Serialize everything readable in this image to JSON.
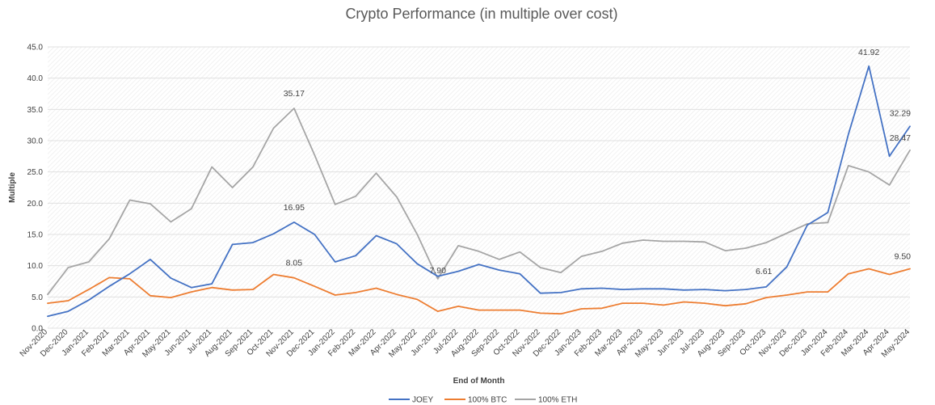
{
  "chart_data": {
    "type": "line",
    "title": "Crypto Performance (in multiple over cost)",
    "xlabel": "End of Month",
    "ylabel": "Multiple",
    "ylim": [
      0,
      45
    ],
    "yticks": [
      "0.0",
      "5.0",
      "10.0",
      "15.0",
      "20.0",
      "25.0",
      "30.0",
      "35.0",
      "40.0",
      "45.0"
    ],
    "grid": true,
    "legend_position": "bottom",
    "categories": [
      "Nov-2020",
      "Dec-2020",
      "Jan-2021",
      "Feb-2021",
      "Mar-2021",
      "Apr-2021",
      "May-2021",
      "Jun-2021",
      "Jul-2021",
      "Aug-2021",
      "Sep-2021",
      "Oct-2021",
      "Nov-2021",
      "Dec-2021",
      "Jan-2022",
      "Feb-2022",
      "Mar-2022",
      "Apr-2022",
      "May-2022",
      "Jun-2022",
      "Jul-2022",
      "Aug-2022",
      "Sep-2022",
      "Oct-2022",
      "Nov-2022",
      "Dec-2022",
      "Jan-2023",
      "Feb-2023",
      "Mar-2023",
      "Apr-2023",
      "May-2023",
      "Jun-2023",
      "Jul-2023",
      "Aug-2023",
      "Sep-2023",
      "Oct-2023",
      "Nov-2023",
      "Dec-2023",
      "Jan-2024",
      "Feb-2024",
      "Mar-2024",
      "Apr-2024",
      "May-2024"
    ],
    "series": [
      {
        "name": "JOEY",
        "color": "#4472c4",
        "values": [
          1.9,
          2.7,
          4.5,
          6.7,
          8.7,
          11.0,
          8.0,
          6.5,
          7.1,
          13.4,
          13.7,
          15.1,
          16.95,
          15.0,
          10.6,
          11.6,
          14.8,
          13.5,
          10.3,
          8.3,
          9.1,
          10.2,
          9.3,
          8.7,
          5.6,
          5.7,
          6.3,
          6.4,
          6.2,
          6.3,
          6.3,
          6.1,
          6.2,
          6.0,
          6.2,
          6.61,
          9.8,
          16.5,
          18.5,
          31.0,
          41.92,
          27.5,
          32.29
        ],
        "labels": [
          {
            "index": 12,
            "text": "16.95"
          },
          {
            "index": 35,
            "text": "6.61"
          },
          {
            "index": 40,
            "text": "41.92"
          },
          {
            "index": 42,
            "text": "32.29"
          }
        ]
      },
      {
        "name": "100% BTC",
        "color": "#ed7d31",
        "values": [
          4.0,
          4.4,
          6.2,
          8.1,
          7.9,
          5.2,
          4.9,
          5.8,
          6.5,
          6.1,
          6.2,
          8.6,
          8.05,
          6.7,
          5.3,
          5.7,
          6.4,
          5.4,
          4.6,
          2.7,
          3.5,
          2.9,
          2.9,
          2.9,
          2.4,
          2.3,
          3.1,
          3.2,
          4.0,
          4.0,
          3.7,
          4.2,
          4.0,
          3.6,
          3.9,
          4.9,
          5.3,
          5.8,
          5.8,
          8.7,
          9.5,
          8.6,
          9.5
        ],
        "labels": [
          {
            "index": 12,
            "text": "8.05"
          },
          {
            "index": 42,
            "text": "9.50"
          }
        ]
      },
      {
        "name": "100% ETH",
        "color": "#a5a5a5",
        "values": [
          5.4,
          9.7,
          10.6,
          14.3,
          20.5,
          19.9,
          17.0,
          19.1,
          25.8,
          22.5,
          25.8,
          32.0,
          35.17,
          27.7,
          19.8,
          21.1,
          24.8,
          21.0,
          15.0,
          7.9,
          13.2,
          12.3,
          11.0,
          12.2,
          9.7,
          8.9,
          11.5,
          12.3,
          13.6,
          14.1,
          13.9,
          13.9,
          13.8,
          12.4,
          12.8,
          13.7,
          15.2,
          16.7,
          16.9,
          26.0,
          25.0,
          22.9,
          28.47
        ],
        "labels": [
          {
            "index": 12,
            "text": "35.17"
          },
          {
            "index": 19,
            "text": "7.90"
          },
          {
            "index": 42,
            "text": "28.47"
          }
        ]
      }
    ]
  }
}
